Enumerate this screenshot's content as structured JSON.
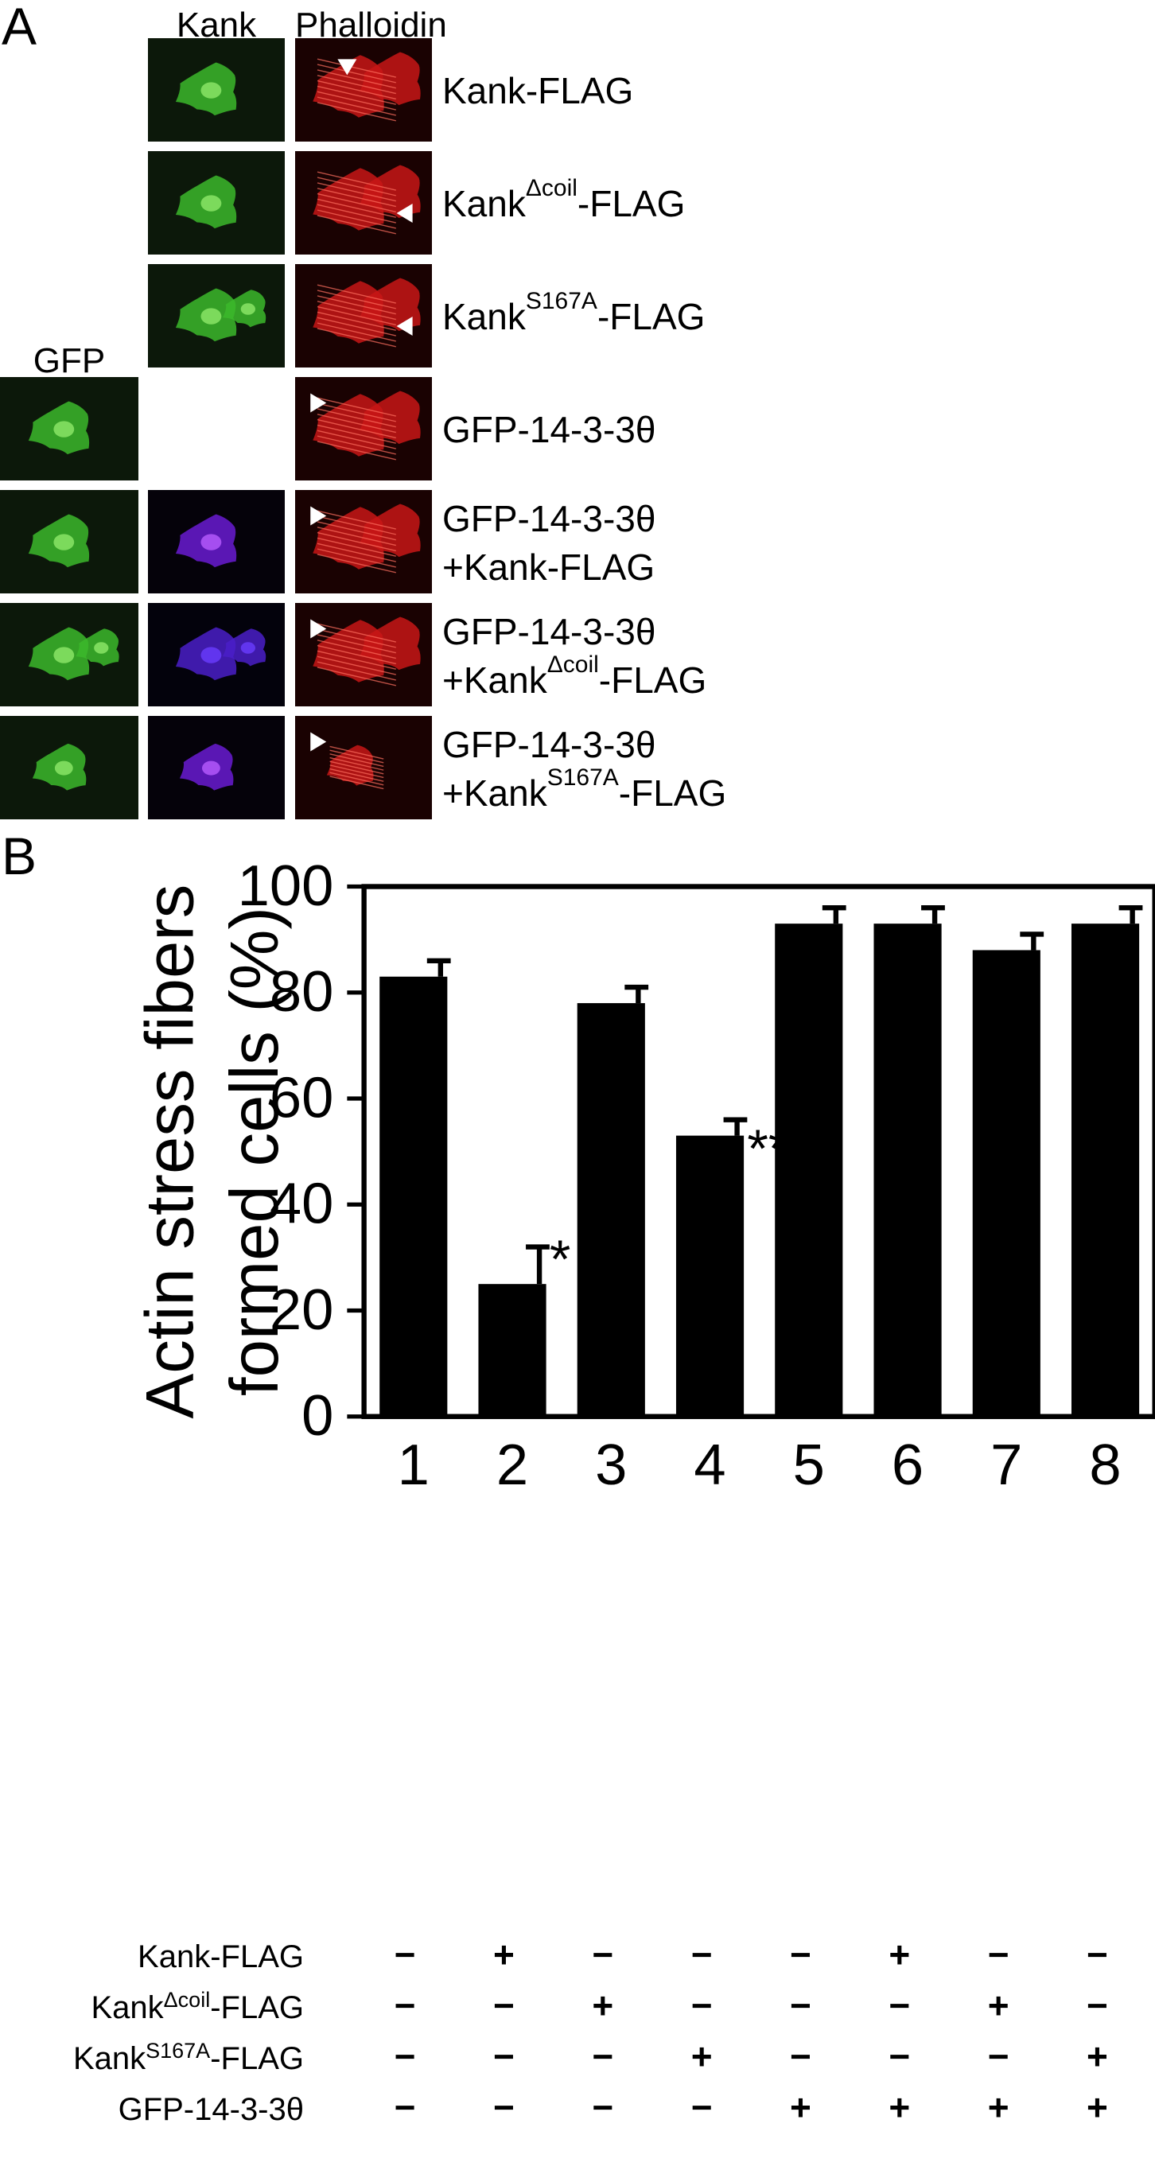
{
  "panel_a": {
    "letter": "A",
    "column_headers": {
      "gfp": "GFP",
      "kank": "Kank",
      "phalloidin": "Phalloidin"
    },
    "rows": [
      {
        "line1": "Kank-FLAG",
        "line2": "",
        "has_gfp": false,
        "has_kank": true,
        "kank_color": "green",
        "cells": "spread",
        "arrow_dir": "down"
      },
      {
        "line1": "Kank",
        "sup1": "Δcoil",
        "rest1": "-FLAG",
        "line2": "",
        "has_gfp": false,
        "has_kank": true,
        "kank_color": "green",
        "cells": "spread",
        "arrow_dir": "left"
      },
      {
        "line1": "Kank",
        "sup1": "S167A",
        "rest1": "-FLAG",
        "line2": "",
        "has_gfp": false,
        "has_kank": true,
        "kank_color": "green",
        "cells": "spread",
        "arrow_dir": "left"
      },
      {
        "line1": "GFP-14-3-3θ",
        "line2": "",
        "has_gfp": true,
        "has_kank": false,
        "cells": "spread",
        "arrow_dir": "right"
      },
      {
        "line1": "GFP-14-3-3θ",
        "line2": "+Kank-FLAG",
        "has_gfp": true,
        "has_kank": true,
        "kank_color": "violet",
        "cells": "spread",
        "arrow_dir": "right"
      },
      {
        "line1": "GFP-14-3-3θ",
        "line2": "+Kank",
        "sup2": "Δcoil",
        "rest2": "-FLAG",
        "has_gfp": true,
        "has_kank": true,
        "kank_color": "blue",
        "cells": "spread",
        "arrow_dir": "right"
      },
      {
        "line1": "GFP-14-3-3θ",
        "line2": "+Kank",
        "sup2": "S167A",
        "rest2": "-FLAG",
        "has_gfp": true,
        "has_kank": true,
        "kank_color": "violet",
        "cells": "small",
        "arrow_dir": "right"
      }
    ]
  },
  "panel_b": {
    "letter": "B",
    "conditions": [
      {
        "label": "Kank-FLAG",
        "signs": [
          "−",
          "+",
          "−",
          "−",
          "−",
          "+",
          "−",
          "−"
        ]
      },
      {
        "label": "Kank",
        "sup": "Δcoil",
        "rest": "-FLAG",
        "signs": [
          "−",
          "−",
          "+",
          "−",
          "−",
          "−",
          "+",
          "−"
        ]
      },
      {
        "label": "Kank",
        "sup": "S167A",
        "rest": "-FLAG",
        "signs": [
          "−",
          "−",
          "−",
          "+",
          "−",
          "−",
          "−",
          "+"
        ]
      },
      {
        "label": "GFP-14-3-3θ",
        "signs": [
          "−",
          "−",
          "−",
          "−",
          "+",
          "+",
          "+",
          "+"
        ]
      }
    ]
  },
  "chart_data": {
    "type": "bar",
    "categories": [
      "1",
      "2",
      "3",
      "4",
      "5",
      "6",
      "7",
      "8"
    ],
    "values": [
      83,
      25,
      78,
      53,
      93,
      93,
      88,
      93
    ],
    "errors": [
      3,
      7,
      3,
      3,
      3,
      3,
      3,
      3
    ],
    "significance": [
      "",
      "*",
      "",
      "**",
      "",
      "",
      "",
      ""
    ],
    "ylabel_line1": "Actin stress fibers",
    "ylabel_line2": "formed cells (%)",
    "ylim": [
      0,
      100
    ],
    "yticks": [
      0,
      20,
      40,
      60,
      80,
      100
    ],
    "bar_color": "#000000"
  }
}
